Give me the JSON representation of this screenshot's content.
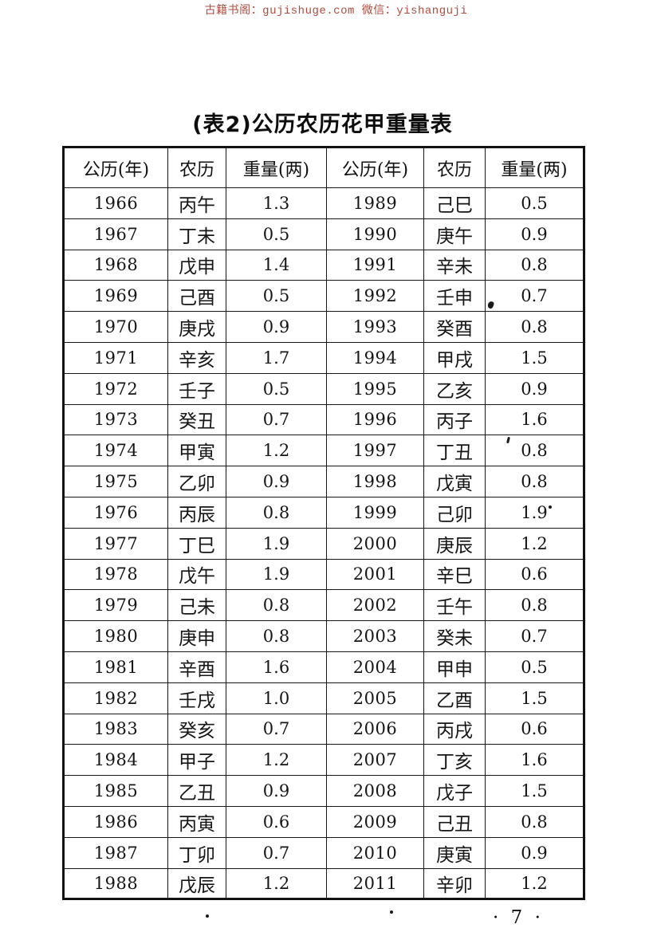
{
  "watermark": {
    "text": "古籍书阁：gujishuge.com 微信：yishanguji",
    "color": "#b24a3e"
  },
  "page": {
    "title": "(表2)公历农历花甲重量表",
    "page_number": "· 7 ·"
  },
  "table": {
    "headers": [
      "公历(年)",
      "农历",
      "重量(两)",
      "公历(年)",
      "农历",
      "重量(两)"
    ],
    "rows": [
      [
        "1966",
        "丙午",
        "1.3",
        "1989",
        "己巳",
        "0.5"
      ],
      [
        "1967",
        "丁未",
        "0.5",
        "1990",
        "庚午",
        "0.9"
      ],
      [
        "1968",
        "戊申",
        "1.4",
        "1991",
        "辛未",
        "0.8"
      ],
      [
        "1969",
        "己酉",
        "0.5",
        "1992",
        "壬申",
        "0.7"
      ],
      [
        "1970",
        "庚戌",
        "0.9",
        "1993",
        "癸酉",
        "0.8"
      ],
      [
        "1971",
        "辛亥",
        "1.7",
        "1994",
        "甲戌",
        "1.5"
      ],
      [
        "1972",
        "壬子",
        "0.5",
        "1995",
        "乙亥",
        "0.9"
      ],
      [
        "1973",
        "癸丑",
        "0.7",
        "1996",
        "丙子",
        "1.6"
      ],
      [
        "1974",
        "甲寅",
        "1.2",
        "1997",
        "丁丑",
        "0.8"
      ],
      [
        "1975",
        "乙卯",
        "0.9",
        "1998",
        "戊寅",
        "0.8"
      ],
      [
        "1976",
        "丙辰",
        "0.8",
        "1999",
        "己卯",
        "1.9"
      ],
      [
        "1977",
        "丁巳",
        "1.9",
        "2000",
        "庚辰",
        "1.2"
      ],
      [
        "1978",
        "戊午",
        "1.9",
        "2001",
        "辛巳",
        "0.6"
      ],
      [
        "1979",
        "己未",
        "0.8",
        "2002",
        "壬午",
        "0.8"
      ],
      [
        "1980",
        "庚申",
        "0.8",
        "2003",
        "癸未",
        "0.7"
      ],
      [
        "1981",
        "辛酉",
        "1.6",
        "2004",
        "甲申",
        "0.5"
      ],
      [
        "1982",
        "壬戌",
        "1.0",
        "2005",
        "乙酉",
        "1.5"
      ],
      [
        "1983",
        "癸亥",
        "0.7",
        "2006",
        "丙戌",
        "0.6"
      ],
      [
        "1984",
        "甲子",
        "1.2",
        "2007",
        "丁亥",
        "1.6"
      ],
      [
        "1985",
        "乙丑",
        "0.9",
        "2008",
        "戊子",
        "1.5"
      ],
      [
        "1986",
        "丙寅",
        "0.6",
        "2009",
        "己丑",
        "0.8"
      ],
      [
        "1987",
        "丁卯",
        "0.7",
        "2010",
        "庚寅",
        "0.9"
      ],
      [
        "1988",
        "戊辰",
        "1.2",
        "2011",
        "辛卯",
        "1.2"
      ]
    ]
  }
}
